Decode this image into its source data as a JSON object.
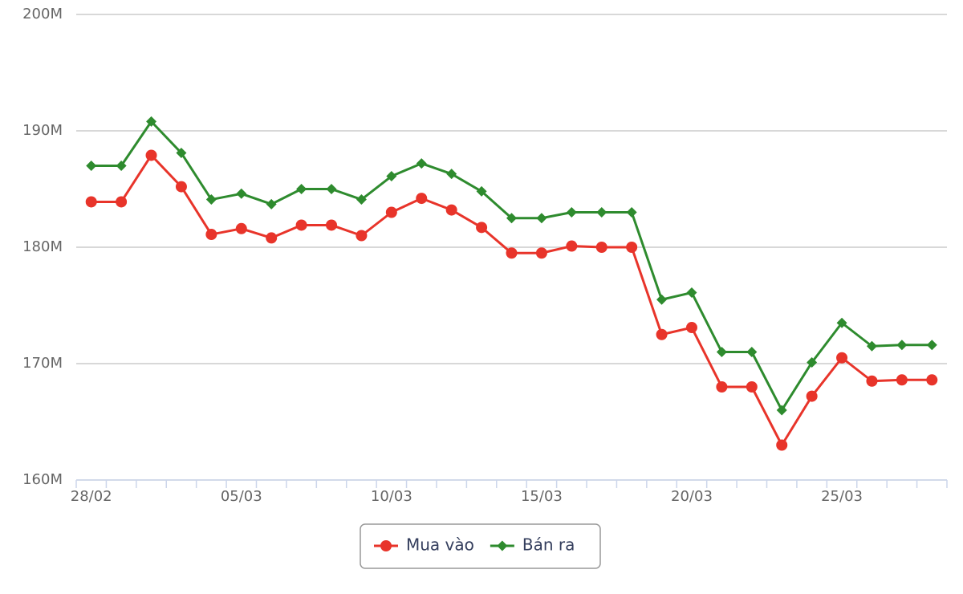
{
  "chart_data": {
    "type": "line",
    "categories": [
      "28/02",
      null,
      null,
      null,
      null,
      "05/03",
      null,
      null,
      null,
      null,
      "10/03",
      null,
      null,
      null,
      null,
      "15/03",
      null,
      null,
      null,
      null,
      "20/03",
      null,
      null,
      null,
      null,
      "25/03",
      null,
      null,
      null
    ],
    "series": [
      {
        "name": "Mua vào",
        "color": "#e8342a",
        "marker": "circle",
        "values": [
          183.9,
          183.9,
          187.9,
          185.2,
          181.1,
          181.6,
          180.8,
          181.9,
          181.9,
          181.0,
          183.0,
          184.2,
          183.2,
          181.7,
          179.5,
          179.5,
          180.1,
          180.0,
          180.0,
          172.5,
          173.1,
          168.0,
          168.0,
          163.0,
          167.2,
          170.5,
          168.5,
          168.6,
          168.6
        ]
      },
      {
        "name": "Bán ra",
        "color": "#2e8b2e",
        "marker": "diamond",
        "values": [
          187.0,
          187.0,
          190.8,
          188.1,
          184.1,
          184.6,
          183.7,
          185.0,
          185.0,
          184.1,
          186.1,
          187.2,
          186.3,
          184.8,
          182.5,
          182.5,
          183.0,
          183.0,
          183.0,
          175.5,
          176.1,
          171.0,
          171.0,
          166.0,
          170.1,
          173.5,
          171.5,
          171.6,
          171.6
        ]
      }
    ],
    "ylim": [
      160,
      200
    ],
    "yticks": [
      {
        "value": 160,
        "label": "160M"
      },
      {
        "value": 170,
        "label": "170M"
      },
      {
        "value": 180,
        "label": "180M"
      },
      {
        "value": 190,
        "label": "190M"
      },
      {
        "value": 200,
        "label": "200M"
      }
    ],
    "grid": true,
    "legend": "bottom"
  }
}
